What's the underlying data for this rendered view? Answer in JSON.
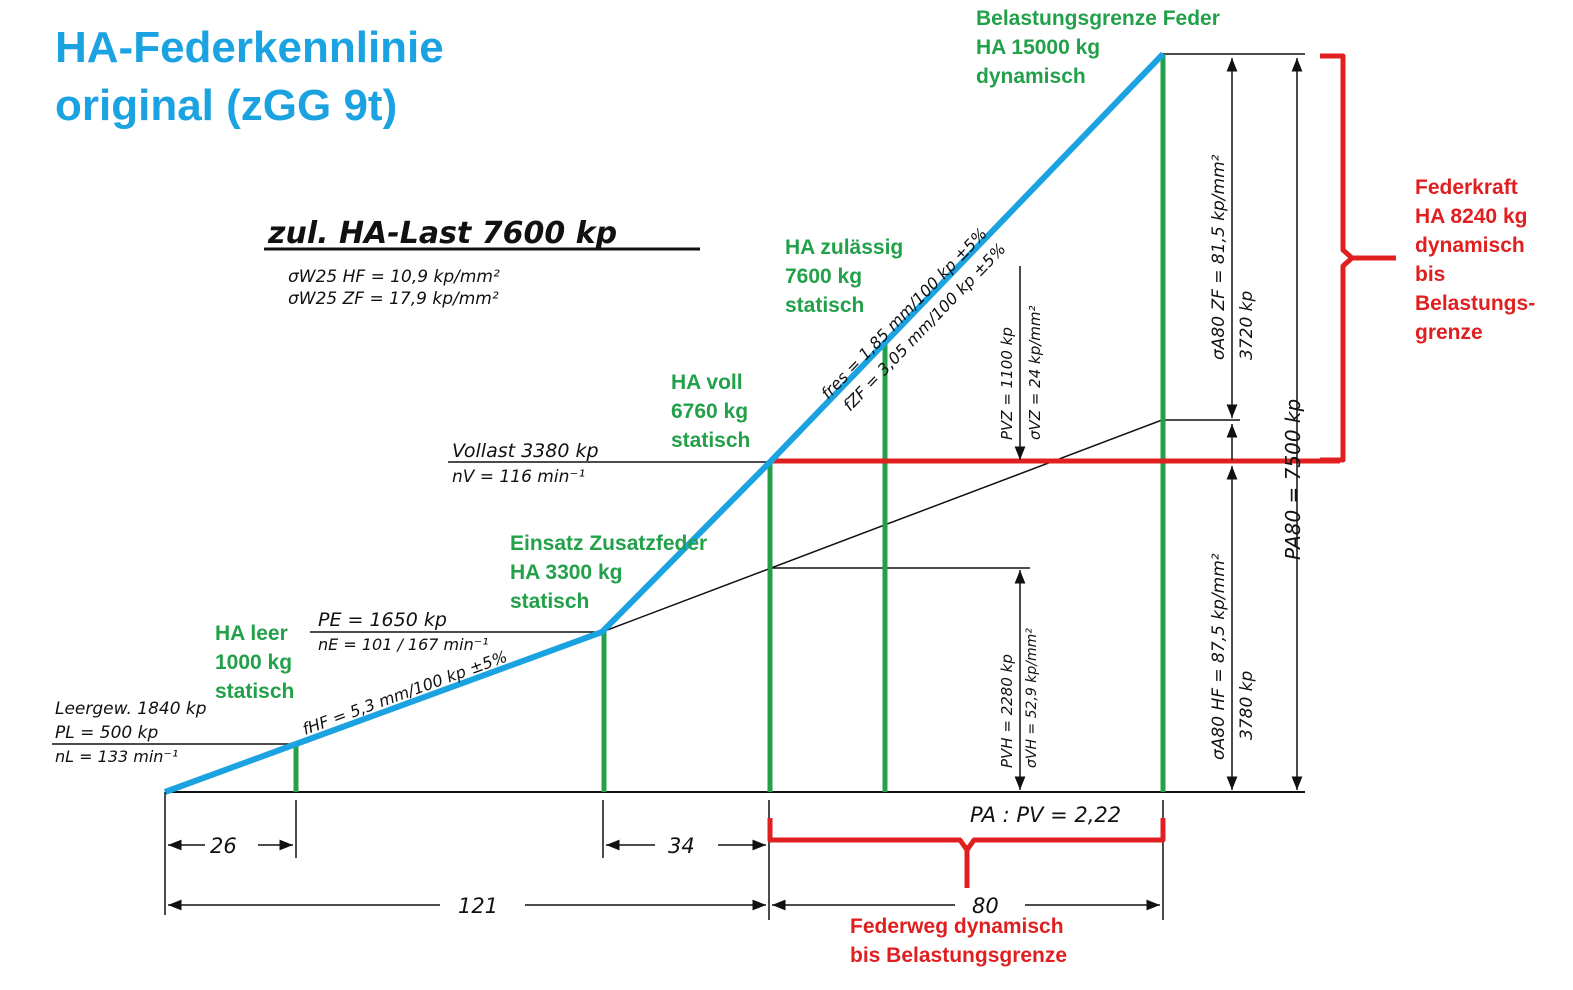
{
  "title": {
    "line1": "HA-Federkennlinie",
    "line2": "original (zGG 9t)"
  },
  "colors": {
    "curve": "#1aa3e0",
    "green": "#22a04a",
    "red": "#e02020",
    "ink": "#111111"
  },
  "load_heading": {
    "text": "zul. HA-Last 7600 kp",
    "stress1": "σW25 HF  =  10,9 kp/mm²",
    "stress2": "σW25 ZF  =  17,9 kp/mm²"
  },
  "labels_left": {
    "leergew": "Leergew.  1840 kp",
    "pl": "PL = 500 kp",
    "nl": "nL = 133 min⁻¹",
    "pe": "PE = 1650 kp",
    "ne": "nE = 101 / 167 min⁻¹",
    "vollast": "Vollast  3380 kp",
    "nv": "nV = 116 min⁻¹"
  },
  "slope_labels": {
    "fhf": "fHF = 5,3 mm/100 kp ±5%",
    "fres": "fres = 1,85 mm/100 kp ±5%",
    "fzf": "fZF = 3,05 mm/100 kp ±5%"
  },
  "vertical_labels": {
    "pvz": "PVZ = 1100 kp",
    "svz": "σVZ = 24 kp/mm²",
    "pvh": "PVH = 2280 kp",
    "svh": "σVH = 52,9 kp/mm²",
    "sabozf": "σA80 ZF = 81,5 kp/mm²",
    "p3720": "3720 kp",
    "sabohf": "σA80 HF = 87,5 kp/mm²",
    "p3780": "3780 kp",
    "pabo": "PA80 = 7500 kp"
  },
  "ratio": "PA : PV = 2,22",
  "dimensions": {
    "d26": "26",
    "d34": "34",
    "d121": "121",
    "d80": "80"
  },
  "green_annotations": {
    "ha_leer": [
      "HA leer",
      "1000 kg",
      "statisch"
    ],
    "einsatz": [
      "Einsatz Zusatzfeder",
      "HA 3300 kg",
      "statisch"
    ],
    "ha_voll": [
      "HA voll",
      "6760 kg",
      "statisch"
    ],
    "ha_zul": [
      "HA zulässig",
      "7600 kg",
      "statisch"
    ],
    "grenze": [
      "Belastungsgrenze Feder",
      "HA 15000 kg",
      "dynamisch"
    ]
  },
  "red_annotations": {
    "federkraft": [
      "Federkraft",
      "HA 8240 kg",
      "dynamisch",
      "bis",
      "Belastungs-",
      "grenze"
    ],
    "federweg": [
      "Federweg dynamisch",
      "bis Belastungsgrenze"
    ]
  }
}
